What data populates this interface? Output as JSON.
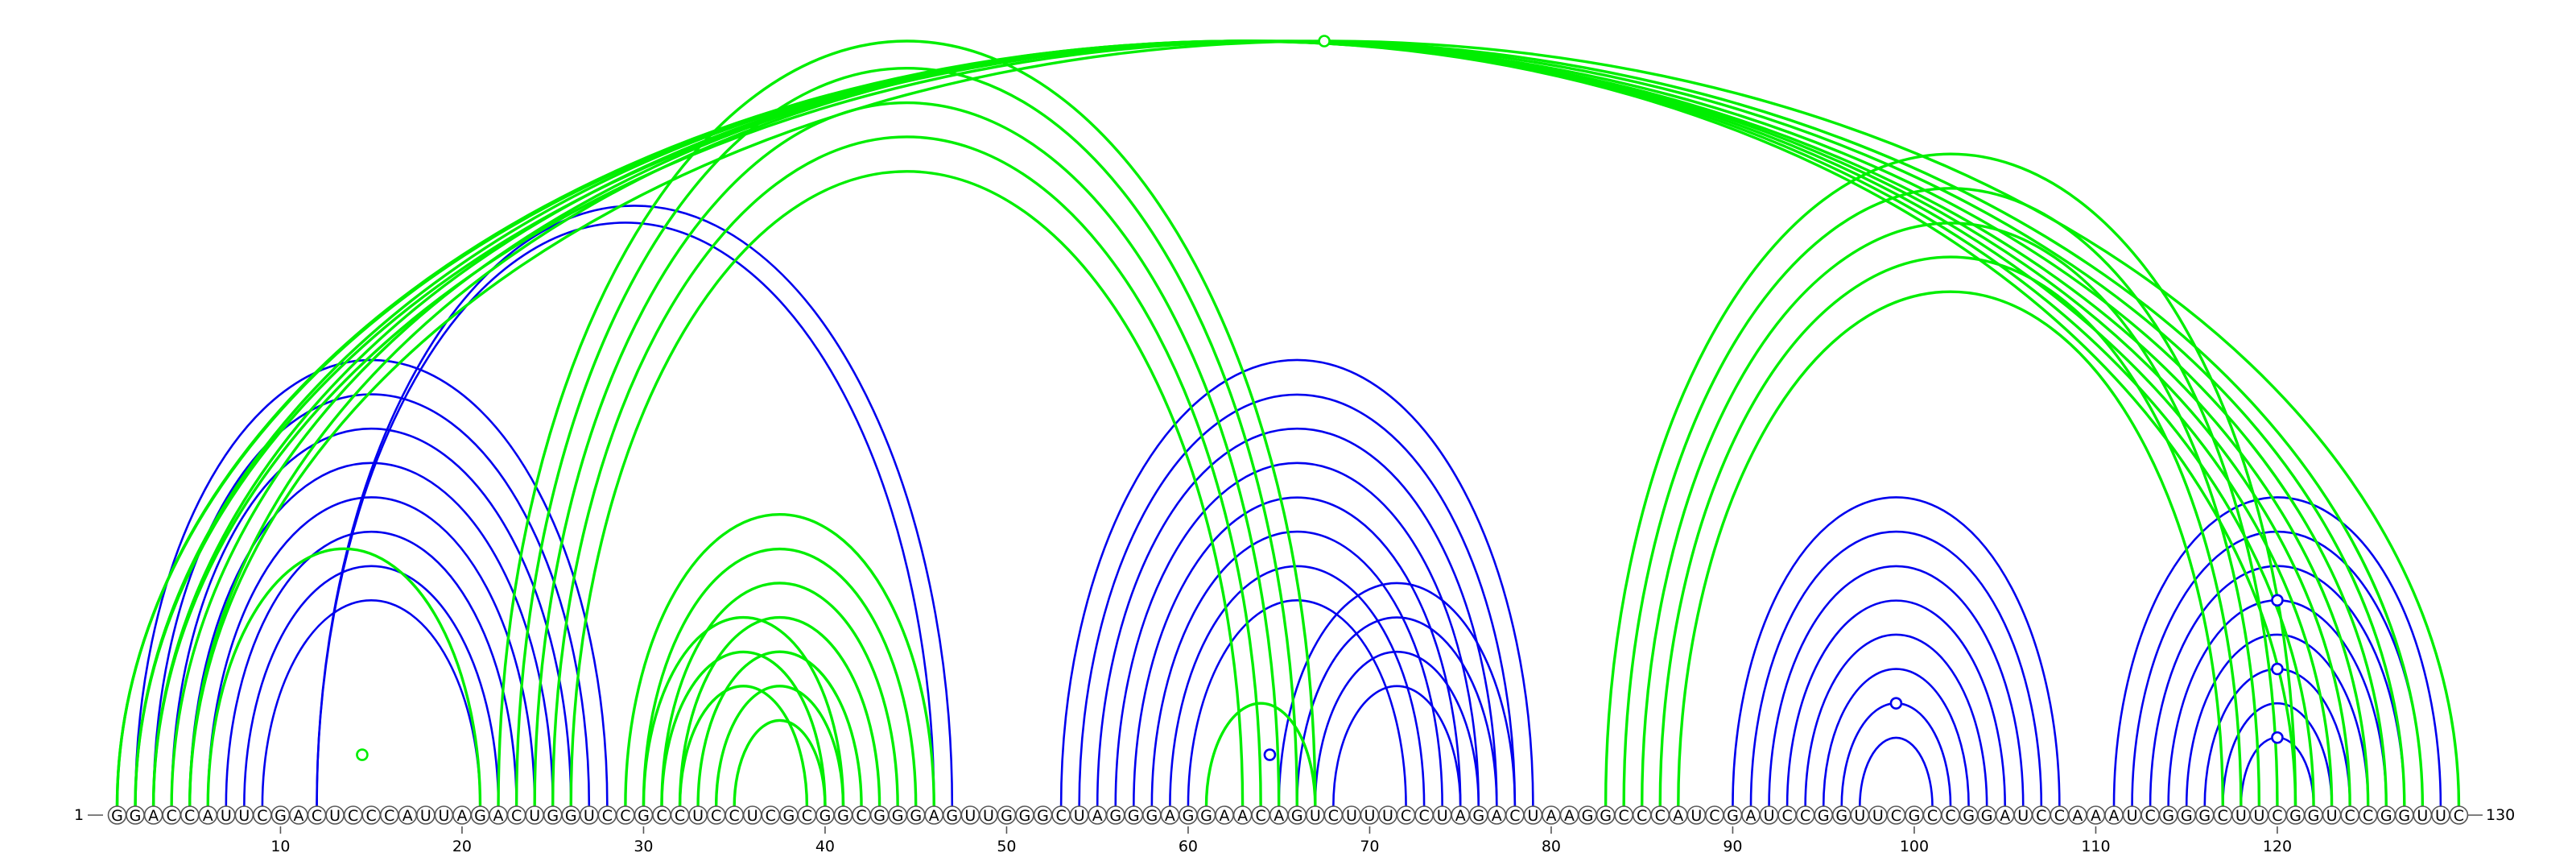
{
  "sequence": "GGACCAUUCGACUCCCAUUAGACUGGUCCGCCUCCUCGCGGCGGGAGUUGGGCUAGGGAGGAACAGUCUUUCCUAGACUAAGGCCCAUCGAUCCGGUUCGCCGGAUCCAAAUCGGGCUUCGGUCCGGUUC",
  "length": 130,
  "start_label": "1",
  "end_label": "130",
  "tick_labels": [
    "10",
    "20",
    "30",
    "40",
    "50",
    "60",
    "70",
    "80",
    "90",
    "100",
    "110",
    "120"
  ],
  "ticks": [
    10,
    20,
    30,
    40,
    50,
    60,
    70,
    80,
    90,
    100,
    110,
    120
  ],
  "colors": {
    "blue": "#0000ee",
    "green": "#00ee00"
  },
  "arcs": {
    "blue": [
      [
        2,
        28
      ],
      [
        3,
        27
      ],
      [
        4,
        26
      ],
      [
        5,
        25
      ],
      [
        6,
        24
      ],
      [
        7,
        23
      ],
      [
        8,
        22
      ],
      [
        9,
        21
      ],
      [
        12,
        47
      ],
      [
        12,
        46
      ],
      [
        53,
        79
      ],
      [
        54,
        78
      ],
      [
        55,
        77
      ],
      [
        56,
        76
      ],
      [
        57,
        75
      ],
      [
        58,
        74
      ],
      [
        59,
        73
      ],
      [
        60,
        72
      ],
      [
        65,
        78
      ],
      [
        66,
        77
      ],
      [
        67,
        76
      ],
      [
        68,
        75
      ],
      [
        90,
        108
      ],
      [
        91,
        107
      ],
      [
        92,
        106
      ],
      [
        93,
        105
      ],
      [
        94,
        104
      ],
      [
        95,
        103
      ],
      [
        96,
        102
      ],
      [
        97,
        101
      ],
      [
        111,
        129
      ],
      [
        112,
        128
      ],
      [
        113,
        127
      ],
      [
        114,
        126
      ],
      [
        115,
        125
      ],
      [
        116,
        124
      ],
      [
        117,
        123
      ],
      [
        118,
        122
      ]
    ],
    "green": [
      [
        1,
        125
      ],
      [
        2,
        124
      ],
      [
        3,
        123
      ],
      [
        4,
        122
      ],
      [
        5,
        121
      ],
      [
        1,
        126
      ],
      [
        2,
        127
      ],
      [
        3,
        128
      ],
      [
        5,
        130
      ],
      [
        6,
        21
      ],
      [
        22,
        67
      ],
      [
        23,
        66
      ],
      [
        24,
        65
      ],
      [
        25,
        64
      ],
      [
        26,
        63
      ],
      [
        29,
        46
      ],
      [
        30,
        45
      ],
      [
        31,
        44
      ],
      [
        32,
        43
      ],
      [
        33,
        42
      ],
      [
        34,
        41
      ],
      [
        35,
        40
      ],
      [
        30,
        41
      ],
      [
        31,
        40
      ],
      [
        32,
        39
      ],
      [
        61,
        67
      ],
      [
        83,
        121
      ],
      [
        84,
        120
      ],
      [
        85,
        119
      ],
      [
        86,
        118
      ],
      [
        87,
        117
      ]
    ]
  },
  "markers": {
    "blue": [
      [
        63,
        66
      ],
      [
        96,
        102
      ],
      [
        118,
        122
      ],
      [
        116,
        124
      ],
      [
        114,
        126
      ]
    ],
    "green": [
      [
        5,
        130
      ],
      [
        13,
        16
      ]
    ]
  }
}
